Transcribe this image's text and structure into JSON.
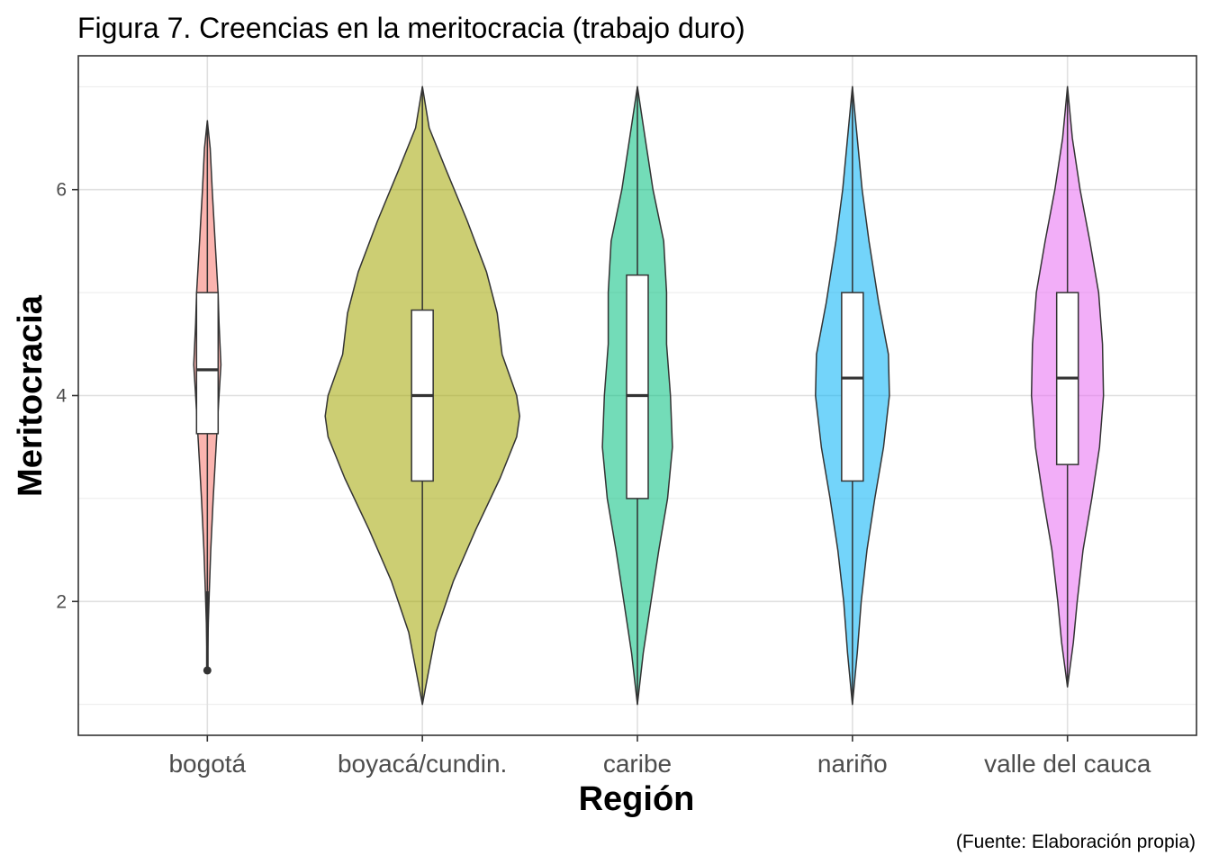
{
  "chart_data": {
    "type": "violin",
    "title": "Figura 7. Creencias en la meritocracia (trabajo duro)",
    "xlabel": "Región",
    "ylabel": "Meritocracia",
    "caption": "(Fuente: Elaboración propia)",
    "ylim": [
      0.7,
      7.3
    ],
    "yticks": [
      2,
      4,
      6
    ],
    "grid": true,
    "legend": "none",
    "categories": [
      "bogotá",
      "boyacá/cundin.",
      "caribe",
      "nariño",
      "valle del cauca"
    ],
    "series": [
      {
        "category": "bogotá",
        "color": "#F8766D",
        "min": 1.33,
        "max": 6.67,
        "box": {
          "whisker_low": 2.1,
          "q1": 3.63,
          "median": 4.25,
          "q3": 5.0,
          "whisker_high": 6.67
        },
        "outliers": [
          1.33
        ],
        "density": [
          [
            1.33,
            0.0
          ],
          [
            1.8,
            0.01
          ],
          [
            2.1,
            0.02
          ],
          [
            2.5,
            0.035
          ],
          [
            3.0,
            0.06
          ],
          [
            3.5,
            0.09
          ],
          [
            4.0,
            0.12
          ],
          [
            4.3,
            0.14
          ],
          [
            4.7,
            0.12
          ],
          [
            5.0,
            0.11
          ],
          [
            5.5,
            0.08
          ],
          [
            6.0,
            0.05
          ],
          [
            6.4,
            0.03
          ],
          [
            6.67,
            0.0
          ]
        ]
      },
      {
        "category": "boyacá/cundin.",
        "color": "#A3A500",
        "min": 1.0,
        "max": 7.0,
        "box": {
          "whisker_low": 1.0,
          "q1": 3.17,
          "median": 4.0,
          "q3": 4.83,
          "whisker_high": 7.0
        },
        "outliers": [],
        "density": [
          [
            1.0,
            0.0
          ],
          [
            1.3,
            0.06
          ],
          [
            1.7,
            0.14
          ],
          [
            2.2,
            0.32
          ],
          [
            2.7,
            0.55
          ],
          [
            3.2,
            0.8
          ],
          [
            3.6,
            0.97
          ],
          [
            3.8,
            1.0
          ],
          [
            4.0,
            0.97
          ],
          [
            4.4,
            0.82
          ],
          [
            4.8,
            0.77
          ],
          [
            5.2,
            0.66
          ],
          [
            5.7,
            0.46
          ],
          [
            6.2,
            0.24
          ],
          [
            6.6,
            0.07
          ],
          [
            7.0,
            0.0
          ]
        ]
      },
      {
        "category": "caribe",
        "color": "#00BF7D",
        "min": 1.0,
        "max": 7.0,
        "box": {
          "whisker_low": 1.0,
          "q1": 3.0,
          "median": 4.0,
          "q3": 5.17,
          "whisker_high": 7.0
        },
        "outliers": [],
        "density": [
          [
            1.0,
            0.0
          ],
          [
            1.5,
            0.06
          ],
          [
            2.0,
            0.14
          ],
          [
            2.5,
            0.22
          ],
          [
            3.0,
            0.31
          ],
          [
            3.5,
            0.36
          ],
          [
            4.0,
            0.34
          ],
          [
            4.5,
            0.3
          ],
          [
            5.0,
            0.3
          ],
          [
            5.5,
            0.27
          ],
          [
            6.0,
            0.16
          ],
          [
            6.5,
            0.08
          ],
          [
            7.0,
            0.0
          ]
        ]
      },
      {
        "category": "nariño",
        "color": "#00B0F6",
        "min": 1.0,
        "max": 7.0,
        "box": {
          "whisker_low": 1.0,
          "q1": 3.17,
          "median": 4.17,
          "q3": 5.0,
          "whisker_high": 7.0
        },
        "outliers": [],
        "density": [
          [
            1.0,
            0.0
          ],
          [
            1.5,
            0.05
          ],
          [
            2.0,
            0.09
          ],
          [
            2.5,
            0.15
          ],
          [
            3.0,
            0.23
          ],
          [
            3.5,
            0.32
          ],
          [
            4.0,
            0.38
          ],
          [
            4.4,
            0.37
          ],
          [
            4.9,
            0.27
          ],
          [
            5.5,
            0.17
          ],
          [
            6.0,
            0.1
          ],
          [
            6.5,
            0.05
          ],
          [
            7.0,
            0.0
          ]
        ]
      },
      {
        "category": "valle del cauca",
        "color": "#E76BF3",
        "min": 1.17,
        "max": 7.0,
        "box": {
          "whisker_low": 1.17,
          "q1": 3.33,
          "median": 4.17,
          "q3": 5.0,
          "whisker_high": 7.0
        },
        "outliers": [],
        "density": [
          [
            1.17,
            0.0
          ],
          [
            1.6,
            0.06
          ],
          [
            2.0,
            0.1
          ],
          [
            2.5,
            0.16
          ],
          [
            3.0,
            0.25
          ],
          [
            3.5,
            0.33
          ],
          [
            4.0,
            0.37
          ],
          [
            4.5,
            0.36
          ],
          [
            5.0,
            0.32
          ],
          [
            5.5,
            0.23
          ],
          [
            6.0,
            0.13
          ],
          [
            6.5,
            0.05
          ],
          [
            7.0,
            0.0
          ]
        ]
      }
    ]
  }
}
